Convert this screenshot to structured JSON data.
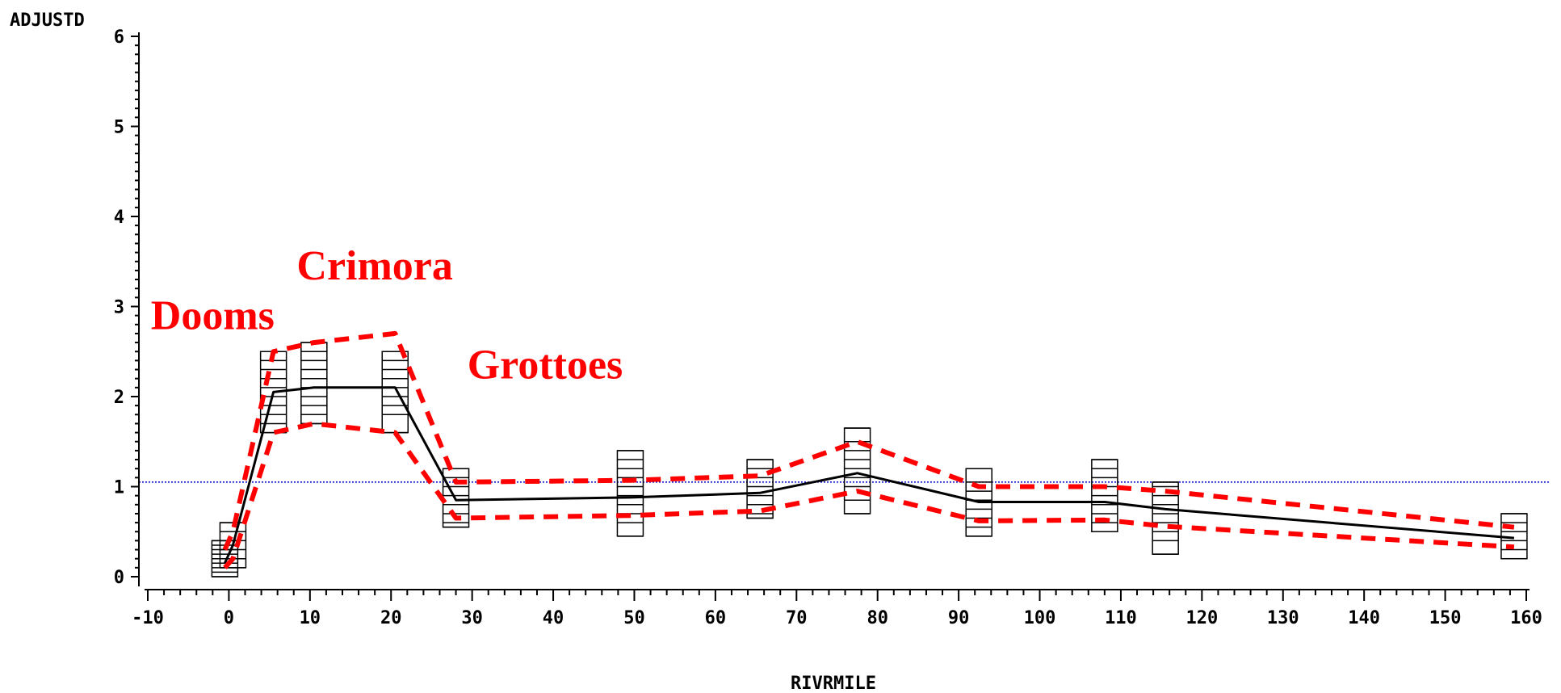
{
  "chart_data": {
    "type": "scatter",
    "title": "",
    "xlabel": "RIVRMILE",
    "ylabel": "ADJUSTD",
    "xlim": [
      -10,
      160
    ],
    "ylim": [
      0,
      6
    ],
    "x_ticks": [
      "-10",
      "0",
      "10",
      "20",
      "30",
      "40",
      "50",
      "60",
      "70",
      "80",
      "90",
      "100",
      "110",
      "120",
      "130",
      "140",
      "150",
      "160"
    ],
    "y_ticks": [
      "0",
      "1",
      "2",
      "3",
      "4",
      "5",
      "6"
    ],
    "reference_line": 1.05,
    "annotations": [
      {
        "text": "Crimora",
        "x": 18,
        "y": 3.3
      },
      {
        "text": "Dooms",
        "x": -2,
        "y": 2.75
      },
      {
        "text": "Grottoes",
        "x": 39,
        "y": 2.2
      }
    ],
    "boxplot_groups": [
      {
        "x": -0.5,
        "values": [
          0.0,
          0.05,
          0.1,
          0.15,
          0.2,
          0.25,
          0.3,
          0.35,
          0.4
        ]
      },
      {
        "x": 0.5,
        "values": [
          0.1,
          0.2,
          0.3,
          0.4,
          0.5,
          0.6
        ]
      },
      {
        "x": 5.5,
        "values": [
          1.6,
          1.7,
          1.8,
          1.9,
          2.0,
          2.1,
          2.2,
          2.3,
          2.4,
          2.5
        ]
      },
      {
        "x": 10.5,
        "values": [
          1.7,
          1.8,
          1.9,
          2.0,
          2.1,
          2.2,
          2.3,
          2.4,
          2.5,
          2.6
        ]
      },
      {
        "x": 20.5,
        "values": [
          1.6,
          1.8,
          1.9,
          2.0,
          2.1,
          2.2,
          2.3,
          2.4,
          2.5
        ]
      },
      {
        "x": 28,
        "values": [
          0.55,
          0.6,
          0.7,
          0.8,
          0.9,
          1.0,
          1.1,
          1.2
        ]
      },
      {
        "x": 49.5,
        "values": [
          0.45,
          0.6,
          0.7,
          0.8,
          0.9,
          1.0,
          1.1,
          1.2,
          1.3,
          1.4
        ]
      },
      {
        "x": 65.5,
        "values": [
          0.65,
          0.7,
          0.8,
          0.9,
          1.0,
          1.1,
          1.2,
          1.3
        ]
      },
      {
        "x": 77.5,
        "values": [
          0.7,
          0.85,
          1.0,
          1.1,
          1.2,
          1.3,
          1.4,
          1.5,
          1.65
        ]
      },
      {
        "x": 92.5,
        "values": [
          0.45,
          0.55,
          0.65,
          0.75,
          0.85,
          0.95,
          1.05,
          1.2
        ]
      },
      {
        "x": 108,
        "values": [
          0.5,
          0.6,
          0.7,
          0.8,
          0.9,
          1.0,
          1.1,
          1.2,
          1.3
        ]
      },
      {
        "x": 115.5,
        "values": [
          0.25,
          0.4,
          0.5,
          0.6,
          0.7,
          0.8,
          0.9,
          1.0,
          1.05
        ]
      },
      {
        "x": 158.5,
        "values": [
          0.2,
          0.3,
          0.4,
          0.5,
          0.6,
          0.7
        ]
      }
    ],
    "series": [
      {
        "style": "solid",
        "color": "#000000",
        "x": [
          -0.5,
          0.5,
          5.5,
          10.5,
          20.5,
          28,
          49.5,
          65.5,
          77.5,
          92.5,
          108,
          115.5,
          158.5
        ],
        "values": [
          0.15,
          0.35,
          2.05,
          2.1,
          2.1,
          0.85,
          0.88,
          0.93,
          1.15,
          0.83,
          0.83,
          0.75,
          0.43
        ]
      },
      {
        "style": "dashed",
        "color": "#ff0000",
        "x": [
          -0.5,
          0.5,
          5.5,
          10.5,
          20.5,
          28,
          49.5,
          65.5,
          77.5,
          92.5,
          108,
          115.5,
          158.5
        ],
        "values": [
          0.3,
          0.5,
          2.5,
          2.6,
          2.7,
          1.05,
          1.07,
          1.12,
          1.5,
          1.0,
          1.0,
          0.95,
          0.55
        ]
      },
      {
        "style": "dashed",
        "color": "#ff0000",
        "x": [
          -0.5,
          0.5,
          5.5,
          10.5,
          20.5,
          28,
          49.5,
          65.5,
          77.5,
          92.5,
          108,
          115.5,
          158.5
        ],
        "values": [
          0.1,
          0.2,
          1.6,
          1.7,
          1.6,
          0.65,
          0.68,
          0.73,
          0.95,
          0.62,
          0.63,
          0.56,
          0.33
        ]
      }
    ]
  }
}
